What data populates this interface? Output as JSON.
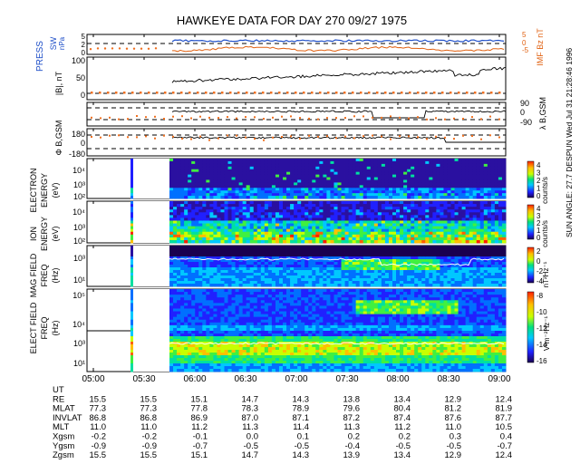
{
  "title": "HAWKEYE DATA FOR DAY 270 09/27 1975",
  "side_note": "SUN ANGLE: 27.7 DESPUN Wed Jul 31 21:28:46 1996",
  "colors": {
    "press": "#2050c8",
    "imf": "#e06010",
    "orange_dots": "#f07020",
    "grid_dash": "#000000"
  },
  "panels": {
    "press_sw": {
      "ylabel_1": "PRESS",
      "ylabel_2": "SW",
      "ylabel_units": "nPa",
      "ticks": [
        "5",
        "2",
        "0"
      ],
      "right_label": "IMF Bz nT",
      "right_ticks": [
        "5",
        "0",
        "-5"
      ]
    },
    "bmag": {
      "ylabel": "|B|, nT",
      "ticks": [
        "100",
        "50",
        "0"
      ]
    },
    "lambda": {
      "ylabel": "λ B,GSM",
      "ticks": [
        "90",
        "0",
        "-90"
      ]
    },
    "phi": {
      "ylabel": "Φ B,GSM",
      "ticks": [
        "180",
        "0",
        "-180"
      ]
    },
    "electron": {
      "ylabel_1": "ELECTRON",
      "ylabel_2": "ENERGY",
      "ylabel_3": "(eV)",
      "ticks": [
        "10⁴",
        "10³",
        "10²"
      ],
      "cbar_ticks": [
        "4",
        "3",
        "2",
        "1",
        "0"
      ],
      "cbar_label": "counts/s"
    },
    "ion": {
      "ylabel_1": "ION",
      "ylabel_2": "ENERGY",
      "ylabel_3": "(eV)",
      "ticks": [
        "10⁴",
        "10³",
        "10²"
      ],
      "cbar_ticks": [
        "4",
        "3",
        "2",
        "1",
        "0"
      ],
      "cbar_label": "counts/s"
    },
    "mag_field": {
      "ylabel_1": "MAG FIELD",
      "ylabel_2": "FREQ",
      "ylabel_3": "(Hz)",
      "ticks": [
        "10³",
        "10¹"
      ],
      "cbar_ticks": [
        "2",
        "0",
        "-2",
        "-4"
      ],
      "cbar_label": "nT²Hz⁻¹"
    },
    "elect_field": {
      "ylabel_1": "ELECT FIELD",
      "ylabel_2": "FREQ",
      "ylabel_3": "(Hz)",
      "ticks": [
        "10⁵",
        "10⁴",
        "10³",
        "10¹"
      ],
      "cbar_ticks": [
        "-8",
        "-10",
        "-12",
        "-14",
        "-16"
      ],
      "cbar_label": "V²m⁻²Hz⁻¹"
    }
  },
  "time_axis": [
    "05:00",
    "05:30",
    "06:00",
    "06:30",
    "07:00",
    "07:30",
    "08:00",
    "08:30",
    "09:00"
  ],
  "ephemeris": [
    {
      "label": "UT",
      "values": [
        "",
        "",
        "",
        "",
        "",
        "",
        "",
        "",
        ""
      ]
    },
    {
      "label": "RE",
      "values": [
        "15.5",
        "15.5",
        "15.1",
        "14.7",
        "14.3",
        "13.8",
        "13.4",
        "12.9",
        "12.4"
      ]
    },
    {
      "label": "MLAT",
      "values": [
        "77.3",
        "77.3",
        "77.8",
        "78.3",
        "78.9",
        "79.6",
        "80.4",
        "81.2",
        "81.9"
      ]
    },
    {
      "label": "INVLAT",
      "values": [
        "86.8",
        "86.8",
        "86.9",
        "87.0",
        "87.1",
        "87.2",
        "87.4",
        "87.6",
        "87.7"
      ]
    },
    {
      "label": "MLT",
      "values": [
        "11.0",
        "11.0",
        "11.2",
        "11.3",
        "11.4",
        "11.3",
        "11.2",
        "11.0",
        "10.5"
      ]
    },
    {
      "label": "Xgsm",
      "values": [
        "-0.2",
        "-0.2",
        "-0.1",
        "0.0",
        "0.1",
        "0.2",
        "0.2",
        "0.3",
        "0.4"
      ]
    },
    {
      "label": "Ygsm",
      "values": [
        "-0.9",
        "-0.9",
        "-0.7",
        "-0.5",
        "-0.5",
        "-0.4",
        "-0.5",
        "-0.5",
        "-0.7"
      ]
    },
    {
      "label": "Zgsm",
      "values": [
        "15.5",
        "15.5",
        "15.1",
        "14.7",
        "14.3",
        "13.9",
        "13.4",
        "12.9",
        "12.4"
      ]
    }
  ],
  "chart_data": {
    "type": "heatmap",
    "title": "HAWKEYE DATA FOR DAY 270 09/27 1975",
    "x_axis": "UT",
    "x_range": [
      "05:00",
      "09:00"
    ],
    "data_gap_ut": [
      "05:33",
      "05:46"
    ],
    "series": [
      {
        "name": "PRESS SW",
        "units": "nPa",
        "ylim": [
          0,
          5
        ]
      },
      {
        "name": "IMF Bz",
        "units": "nT",
        "ylim": [
          -5,
          5
        ]
      },
      {
        "name": "|B|",
        "units": "nT",
        "ylim": [
          0,
          100
        ]
      },
      {
        "name": "λB,GSM",
        "ylim": [
          -90,
          90
        ]
      },
      {
        "name": "ΦB,GSM",
        "ylim": [
          -180,
          180
        ]
      },
      {
        "name": "ELECTRON ENERGY",
        "units": "eV",
        "scale": "log",
        "colorbar": "counts/s",
        "crange": [
          0,
          4
        ]
      },
      {
        "name": "ION ENERGY",
        "units": "eV",
        "scale": "log",
        "colorbar": "counts/s",
        "crange": [
          0,
          4
        ]
      },
      {
        "name": "MAG FIELD FREQ",
        "units": "Hz",
        "scale": "log",
        "colorbar": "nT²Hz⁻¹",
        "crange": [
          -4,
          2
        ]
      },
      {
        "name": "ELECT FIELD FREQ",
        "units": "Hz",
        "scale": "log",
        "colorbar": "V²m⁻²Hz⁻¹",
        "crange": [
          -16,
          -8
        ]
      }
    ]
  }
}
